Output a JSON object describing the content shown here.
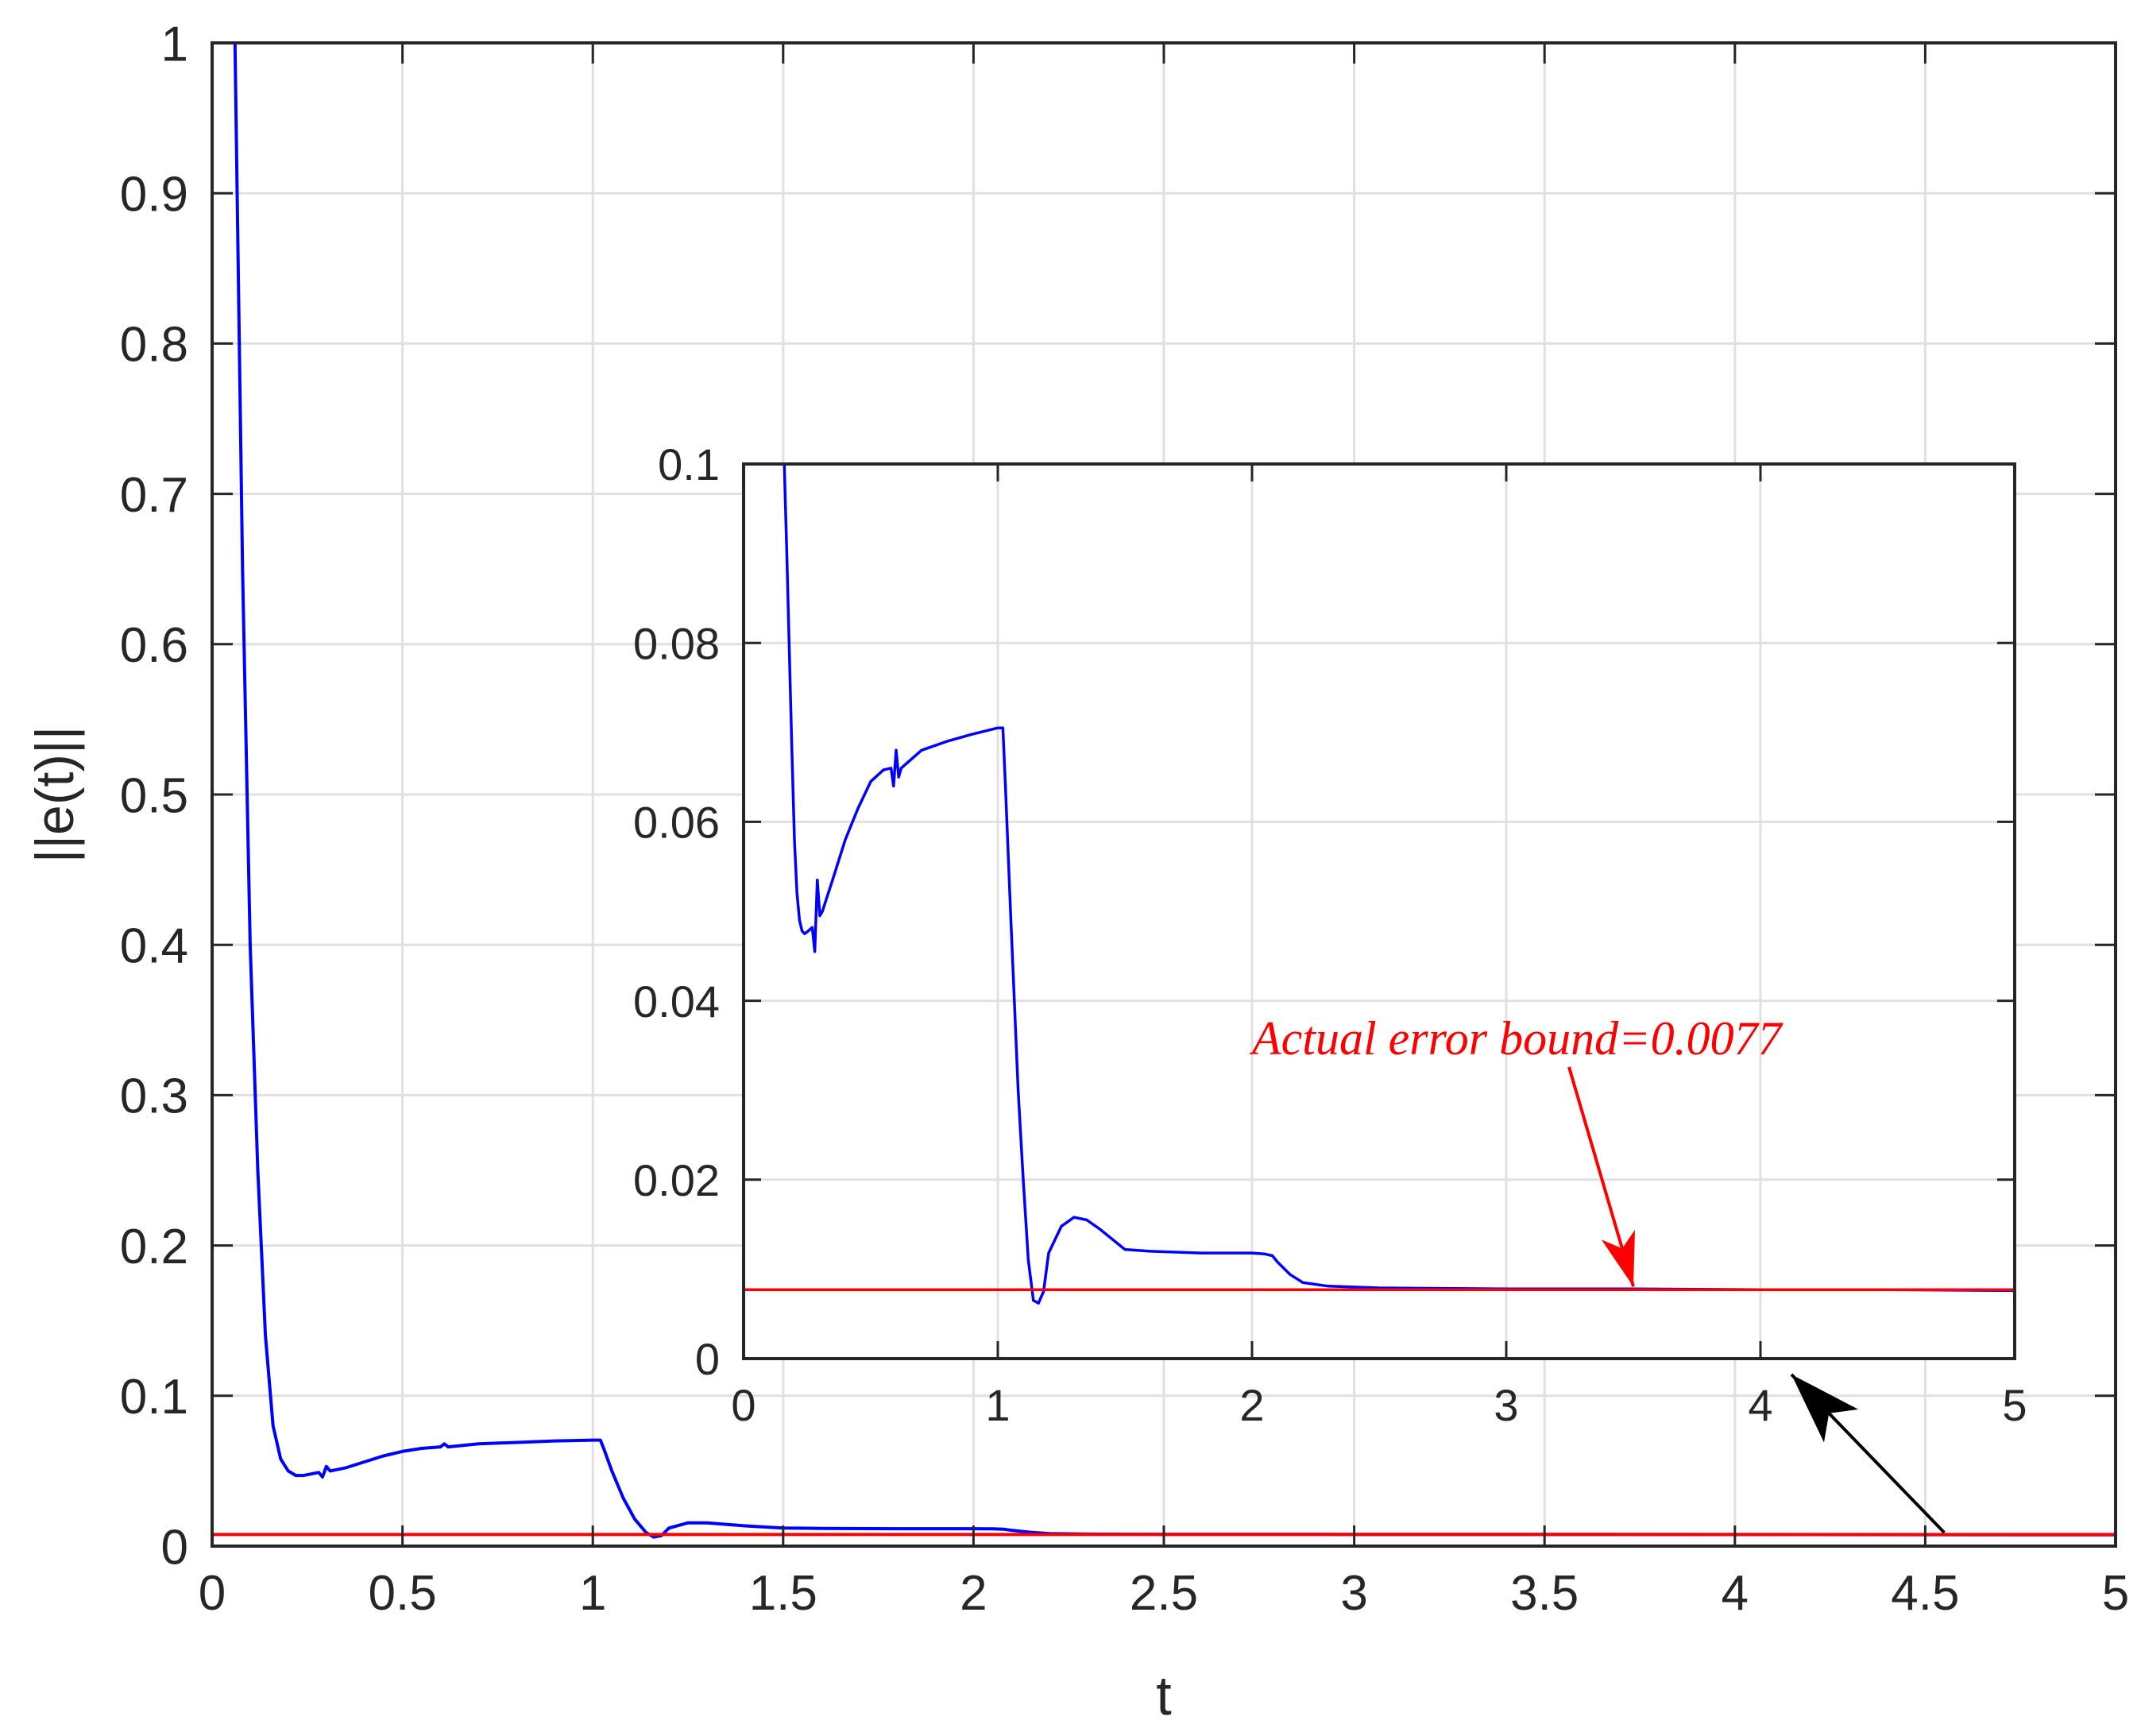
{
  "chart_data": [
    {
      "id": "main",
      "type": "line",
      "xlabel": "t",
      "ylabel": "||e(t)||",
      "xlim": [
        0,
        5
      ],
      "ylim": [
        0,
        1
      ],
      "xticks": [
        0,
        0.5,
        1,
        1.5,
        2,
        2.5,
        3,
        3.5,
        4,
        4.5,
        5
      ],
      "xtick_labels": [
        "0",
        "0.5",
        "1",
        "1.5",
        "2",
        "2.5",
        "3",
        "3.5",
        "4",
        "4.5",
        "5"
      ],
      "yticks": [
        0,
        0.1,
        0.2,
        0.3,
        0.4,
        0.5,
        0.6,
        0.7,
        0.8,
        0.9,
        1
      ],
      "ytick_labels": [
        "0",
        "0.1",
        "0.2",
        "0.3",
        "0.4",
        "0.5",
        "0.6",
        "0.7",
        "0.8",
        "0.9",
        "1"
      ],
      "grid": true,
      "series": [
        {
          "color": "#0000ff",
          "x": [
            0.06,
            0.08,
            0.1,
            0.12,
            0.14,
            0.16,
            0.18,
            0.2,
            0.22,
            0.24,
            0.26,
            0.28,
            0.29,
            0.3,
            0.31,
            0.35,
            0.4,
            0.45,
            0.5,
            0.55,
            0.6,
            0.61,
            0.62,
            0.7,
            0.8,
            0.9,
            1.0,
            1.02,
            1.03,
            1.05,
            1.08,
            1.11,
            1.14,
            1.16,
            1.18,
            1.2,
            1.25,
            1.3,
            1.4,
            1.5,
            1.6,
            1.8,
            2.0,
            2.05,
            2.08,
            2.1,
            2.15,
            2.2,
            2.3,
            2.5,
            3.0,
            3.5,
            4.0,
            4.5,
            5.0
          ],
          "y": [
            1.0,
            0.65,
            0.4,
            0.25,
            0.14,
            0.08,
            0.058,
            0.05,
            0.047,
            0.047,
            0.048,
            0.049,
            0.046,
            0.053,
            0.05,
            0.052,
            0.056,
            0.06,
            0.063,
            0.065,
            0.066,
            0.068,
            0.066,
            0.068,
            0.069,
            0.07,
            0.0705,
            0.0705,
            0.064,
            0.05,
            0.032,
            0.018,
            0.009,
            0.006,
            0.007,
            0.012,
            0.0155,
            0.0155,
            0.0135,
            0.012,
            0.0118,
            0.0116,
            0.0116,
            0.0115,
            0.0112,
            0.0105,
            0.0092,
            0.0083,
            0.008,
            0.0079,
            0.0078,
            0.0078,
            0.0077,
            0.0076,
            0.0075
          ]
        },
        {
          "color": "#ff0000",
          "x": [
            0,
            5
          ],
          "y": [
            0.0077,
            0.0077
          ]
        }
      ]
    },
    {
      "id": "inset",
      "type": "line",
      "xlim": [
        0,
        5
      ],
      "ylim": [
        0,
        0.1
      ],
      "xticks": [
        0,
        1,
        2,
        3,
        4,
        5
      ],
      "xtick_labels": [
        "0",
        "1",
        "2",
        "3",
        "4",
        "5"
      ],
      "yticks": [
        0,
        0.02,
        0.04,
        0.06,
        0.08,
        0.1
      ],
      "ytick_labels": [
        "0",
        "0.02",
        "0.04",
        "0.06",
        "0.08",
        "0.1"
      ],
      "grid": true,
      "annotation": {
        "text": "Actual error bound=0.0077",
        "color": "#ff0000",
        "x": 2.0,
        "y": 0.034,
        "arrow_to": [
          3.5,
          0.0077
        ]
      },
      "series": [
        {
          "color": "#0000ff",
          "x": [
            0.16,
            0.17,
            0.18,
            0.19,
            0.2,
            0.21,
            0.22,
            0.23,
            0.24,
            0.25,
            0.27,
            0.28,
            0.29,
            0.3,
            0.31,
            0.35,
            0.4,
            0.45,
            0.5,
            0.55,
            0.58,
            0.59,
            0.6,
            0.61,
            0.62,
            0.7,
            0.8,
            0.9,
            1.0,
            1.02,
            1.03,
            1.05,
            1.08,
            1.1,
            1.12,
            1.14,
            1.16,
            1.18,
            1.2,
            1.25,
            1.3,
            1.35,
            1.4,
            1.5,
            1.6,
            1.8,
            2.0,
            2.05,
            2.08,
            2.1,
            2.15,
            2.2,
            2.3,
            2.5,
            3.0,
            3.5,
            4.0,
            4.5,
            5.0
          ],
          "y": [
            0.1,
            0.09,
            0.079,
            0.068,
            0.058,
            0.052,
            0.049,
            0.0478,
            0.0475,
            0.0477,
            0.0482,
            0.0455,
            0.0535,
            0.0495,
            0.05,
            0.0535,
            0.058,
            0.0615,
            0.0645,
            0.0658,
            0.066,
            0.064,
            0.068,
            0.065,
            0.066,
            0.068,
            0.069,
            0.0698,
            0.0705,
            0.0705,
            0.064,
            0.05,
            0.03,
            0.02,
            0.011,
            0.0065,
            0.0062,
            0.0075,
            0.0118,
            0.0148,
            0.0158,
            0.0155,
            0.0145,
            0.0122,
            0.012,
            0.0118,
            0.0118,
            0.0117,
            0.0115,
            0.0108,
            0.0094,
            0.0085,
            0.0081,
            0.0079,
            0.0078,
            0.0078,
            0.0077,
            0.0077,
            0.0076
          ]
        },
        {
          "color": "#ff0000",
          "x": [
            0,
            5
          ],
          "y": [
            0.0077,
            0.0077
          ]
        }
      ]
    }
  ]
}
